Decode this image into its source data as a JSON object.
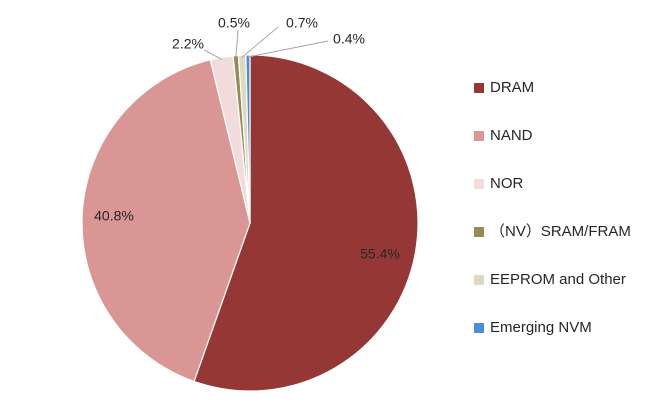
{
  "chart_data": {
    "type": "pie",
    "title": "",
    "legend_position": "right",
    "slices": [
      {
        "label": "DRAM",
        "value": 55.4,
        "display": "55.4%",
        "color": "#953735"
      },
      {
        "label": "NAND",
        "value": 40.8,
        "display": "40.8%",
        "color": "#d99694"
      },
      {
        "label": "NOR",
        "value": 2.2,
        "display": "2.2%",
        "color": "#f2dcdb"
      },
      {
        "label": "（NV）SRAM/FRAM",
        "value": 0.5,
        "display": "0.5%",
        "color": "#948a54"
      },
      {
        "label": "EEPROM and Other",
        "value": 0.7,
        "display": "0.7%",
        "color": "#ddd9c3"
      },
      {
        "label": "Emerging NVM",
        "value": 0.4,
        "display": "0.4%",
        "color": "#4a90d9"
      }
    ]
  }
}
